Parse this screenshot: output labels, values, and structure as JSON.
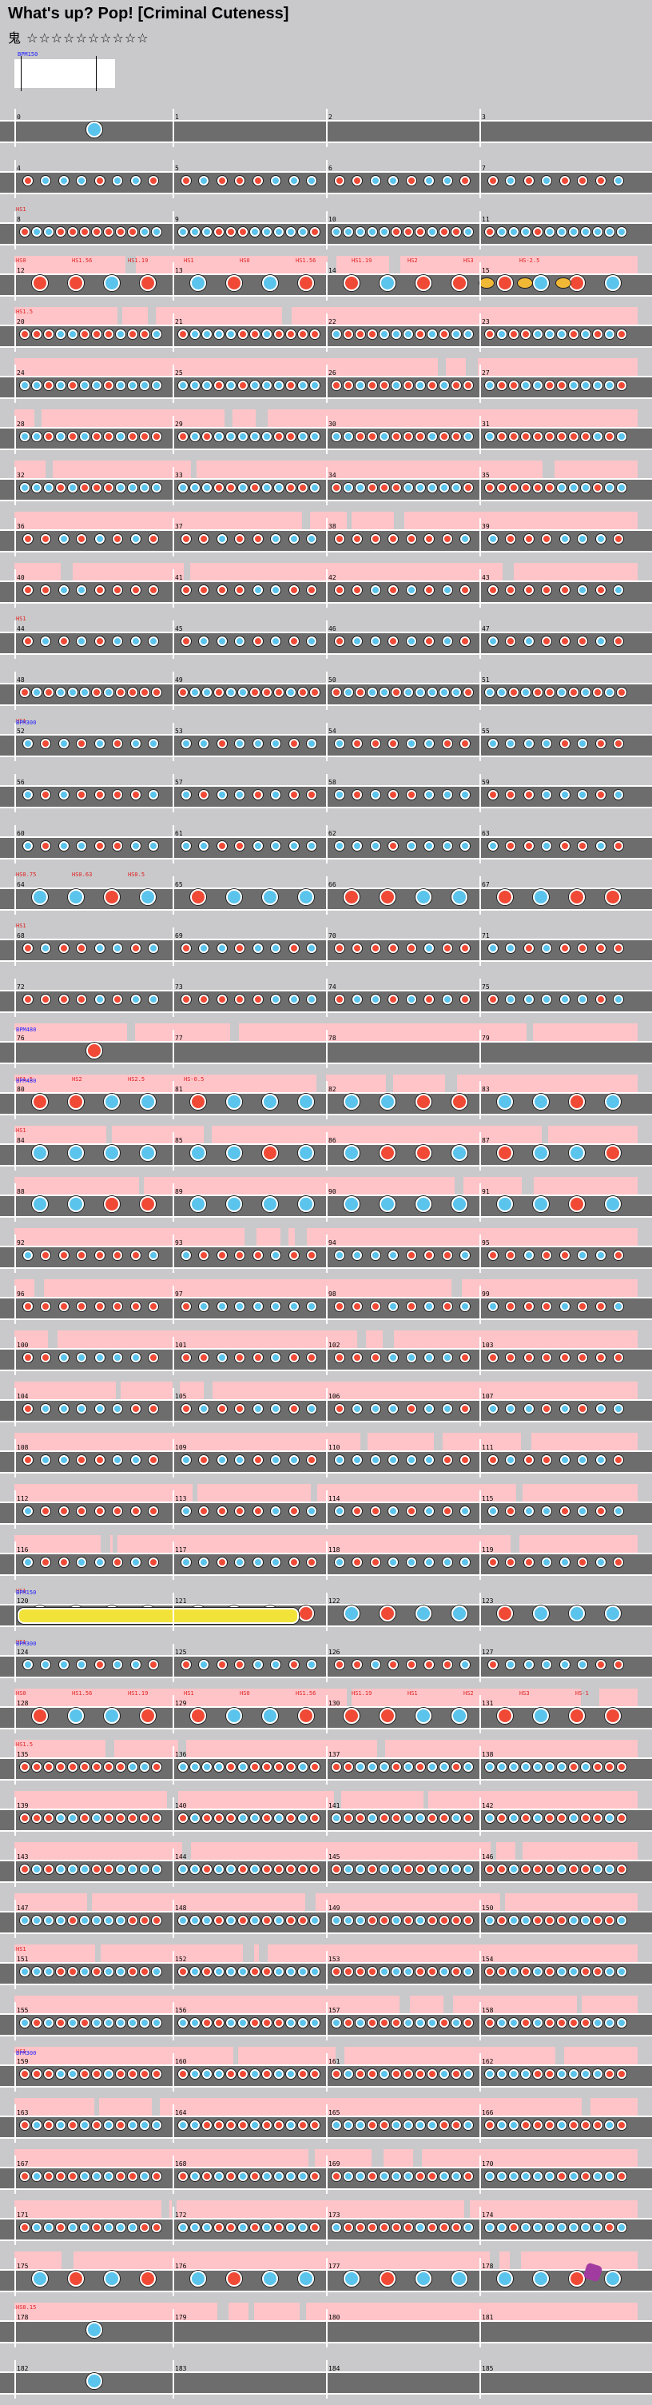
{
  "title": "What's up? Pop! [Criminal Cuteness]",
  "difficulty": {
    "icon_name": "difficulty-crown-icon",
    "symbol": "鬼",
    "stars": "☆☆☆☆☆☆☆☆☆☆"
  },
  "intro": {
    "bpm_label": "BPM150"
  },
  "colors": {
    "background": "#c9c9cb",
    "lane": "#6d6d6d",
    "don": "#f04a36",
    "ka": "#5bc4ec",
    "roll": "#f2e33a",
    "gogo": "#ffc4c8"
  },
  "rows": [
    {
      "measures": [
        "0",
        "1",
        "2",
        "3"
      ],
      "density": 0,
      "gogo": false,
      "labels": [],
      "bpm": ""
    },
    {
      "measures": [
        "4",
        "5",
        "6",
        "7"
      ],
      "density": 2,
      "gogo": false,
      "labels": [],
      "bpm": ""
    },
    {
      "measures": [
        "8",
        "9",
        "10",
        "11"
      ],
      "density": 3,
      "gogo": false,
      "labels": [
        "HS1"
      ],
      "bpm": ""
    },
    {
      "measures": [
        "12",
        "13",
        "14",
        "15"
      ],
      "density": 1,
      "gogo": true,
      "labels": [
        "HS0",
        "HS1.56",
        "HS1.19",
        "HS1",
        "HS0",
        "HS1.56",
        "HS1.19",
        "HS2",
        "HS3",
        "HS-2.5"
      ],
      "bpm": ""
    },
    {
      "measures": [
        "20",
        "21",
        "22",
        "23"
      ],
      "density": 3,
      "gogo": true,
      "labels": [
        "HS1.5"
      ],
      "bpm": ""
    },
    {
      "measures": [
        "24",
        "25",
        "26",
        "27"
      ],
      "density": 3,
      "gogo": true,
      "labels": [],
      "bpm": ""
    },
    {
      "measures": [
        "28",
        "29",
        "30",
        "31"
      ],
      "density": 3,
      "gogo": true,
      "labels": [],
      "bpm": ""
    },
    {
      "measures": [
        "32",
        "33",
        "34",
        "35"
      ],
      "density": 3,
      "gogo": true,
      "labels": [],
      "bpm": ""
    },
    {
      "measures": [
        "36",
        "37",
        "38",
        "39"
      ],
      "density": 2,
      "gogo": true,
      "labels": [],
      "bpm": ""
    },
    {
      "measures": [
        "40",
        "41",
        "42",
        "43"
      ],
      "density": 2,
      "gogo": true,
      "labels": [],
      "bpm": ""
    },
    {
      "measures": [
        "44",
        "45",
        "46",
        "47"
      ],
      "density": 2,
      "gogo": false,
      "labels": [
        "HS1"
      ],
      "bpm": ""
    },
    {
      "measures": [
        "48",
        "49",
        "50",
        "51"
      ],
      "density": 3,
      "gogo": false,
      "labels": [],
      "bpm": ""
    },
    {
      "measures": [
        "52",
        "53",
        "54",
        "55"
      ],
      "density": 2,
      "gogo": false,
      "labels": [
        "HS1"
      ],
      "bpm": "BPM300"
    },
    {
      "measures": [
        "56",
        "57",
        "58",
        "59"
      ],
      "density": 2,
      "gogo": false,
      "labels": [],
      "bpm": ""
    },
    {
      "measures": [
        "60",
        "61",
        "62",
        "63"
      ],
      "density": 2,
      "gogo": false,
      "labels": [],
      "bpm": ""
    },
    {
      "measures": [
        "64",
        "65",
        "66",
        "67"
      ],
      "density": 1,
      "gogo": false,
      "labels": [
        "HS0.75",
        "HS0.63",
        "HS0.5"
      ],
      "bpm": ""
    },
    {
      "measures": [
        "68",
        "69",
        "70",
        "71"
      ],
      "density": 2,
      "gogo": false,
      "labels": [
        "HS1"
      ],
      "bpm": ""
    },
    {
      "measures": [
        "72",
        "73",
        "74",
        "75"
      ],
      "density": 2,
      "gogo": false,
      "labels": [],
      "bpm": ""
    },
    {
      "measures": [
        "76",
        "77",
        "78",
        "79"
      ],
      "density": 0,
      "gogo": true,
      "labels": [],
      "bpm": "BPM480"
    },
    {
      "measures": [
        "80",
        "81",
        "82",
        "83"
      ],
      "density": 1,
      "gogo": true,
      "labels": [
        "HS1.5",
        "HS2",
        "HS2.5",
        "HS-0.5"
      ],
      "bpm": "BPM480"
    },
    {
      "measures": [
        "84",
        "85",
        "86",
        "87"
      ],
      "density": 1,
      "gogo": true,
      "labels": [
        "HS1"
      ],
      "bpm": ""
    },
    {
      "measures": [
        "88",
        "89",
        "90",
        "91"
      ],
      "density": 1,
      "gogo": true,
      "labels": [],
      "bpm": ""
    },
    {
      "measures": [
        "92",
        "93",
        "94",
        "95"
      ],
      "density": 2,
      "gogo": true,
      "labels": [],
      "bpm": ""
    },
    {
      "measures": [
        "96",
        "97",
        "98",
        "99"
      ],
      "density": 2,
      "gogo": true,
      "labels": [],
      "bpm": ""
    },
    {
      "measures": [
        "100",
        "101",
        "102",
        "103"
      ],
      "density": 2,
      "gogo": true,
      "labels": [],
      "bpm": ""
    },
    {
      "measures": [
        "104",
        "105",
        "106",
        "107"
      ],
      "density": 2,
      "gogo": true,
      "labels": [],
      "bpm": ""
    },
    {
      "measures": [
        "108",
        "109",
        "110",
        "111"
      ],
      "density": 2,
      "gogo": true,
      "labels": [],
      "bpm": ""
    },
    {
      "measures": [
        "112",
        "113",
        "114",
        "115"
      ],
      "density": 2,
      "gogo": true,
      "labels": [],
      "bpm": ""
    },
    {
      "measures": [
        "116",
        "117",
        "118",
        "119"
      ],
      "density": 2,
      "gogo": true,
      "labels": [],
      "bpm": ""
    },
    {
      "measures": [
        "120",
        "121",
        "122",
        "123"
      ],
      "density": 1,
      "gogo": false,
      "labels": [
        "HS1"
      ],
      "bpm": "BPM150"
    },
    {
      "measures": [
        "124",
        "125",
        "126",
        "127"
      ],
      "density": 2,
      "gogo": false,
      "labels": [
        "HS1"
      ],
      "bpm": "BPM300"
    },
    {
      "measures": [
        "128",
        "129",
        "130",
        "131"
      ],
      "density": 1,
      "gogo": true,
      "labels": [
        "HS0",
        "HS1.56",
        "HS1.19",
        "HS1",
        "HS0",
        "HS1.56",
        "HS1.19",
        "HS1",
        "HS2",
        "HS3",
        "HS-1"
      ],
      "bpm": ""
    },
    {
      "measures": [
        "135",
        "136",
        "137",
        "138"
      ],
      "density": 3,
      "gogo": true,
      "labels": [
        "HS1.5"
      ],
      "bpm": ""
    },
    {
      "measures": [
        "139",
        "140",
        "141",
        "142"
      ],
      "density": 3,
      "gogo": true,
      "labels": [],
      "bpm": ""
    },
    {
      "measures": [
        "143",
        "144",
        "145",
        "146"
      ],
      "density": 3,
      "gogo": true,
      "labels": [],
      "bpm": ""
    },
    {
      "measures": [
        "147",
        "148",
        "149",
        "150"
      ],
      "density": 3,
      "gogo": true,
      "labels": [],
      "bpm": ""
    },
    {
      "measures": [
        "151",
        "152",
        "153",
        "154"
      ],
      "density": 3,
      "gogo": true,
      "labels": [
        "HS1"
      ],
      "bpm": ""
    },
    {
      "measures": [
        "155",
        "156",
        "157",
        "158"
      ],
      "density": 3,
      "gogo": true,
      "labels": [],
      "bpm": ""
    },
    {
      "measures": [
        "159",
        "160",
        "161",
        "162"
      ],
      "density": 3,
      "gogo": true,
      "labels": [
        "HS1"
      ],
      "bpm": "BPM300"
    },
    {
      "measures": [
        "163",
        "164",
        "165",
        "166"
      ],
      "density": 3,
      "gogo": true,
      "labels": [],
      "bpm": ""
    },
    {
      "measures": [
        "167",
        "168",
        "169",
        "170"
      ],
      "density": 3,
      "gogo": true,
      "labels": [],
      "bpm": ""
    },
    {
      "measures": [
        "171",
        "172",
        "173",
        "174"
      ],
      "density": 3,
      "gogo": true,
      "labels": [],
      "bpm": ""
    },
    {
      "measures": [
        "175",
        "176",
        "177",
        "178"
      ],
      "density": 1,
      "gogo": true,
      "labels": [],
      "bpm": ""
    },
    {
      "measures": [
        "178",
        "179",
        "180",
        "181"
      ],
      "density": 0,
      "gogo": true,
      "labels": [
        "HS0.15"
      ],
      "bpm": ""
    },
    {
      "measures": [
        "182",
        "183",
        "184",
        "185"
      ],
      "density": 0,
      "gogo": false,
      "labels": [],
      "bpm": ""
    }
  ]
}
